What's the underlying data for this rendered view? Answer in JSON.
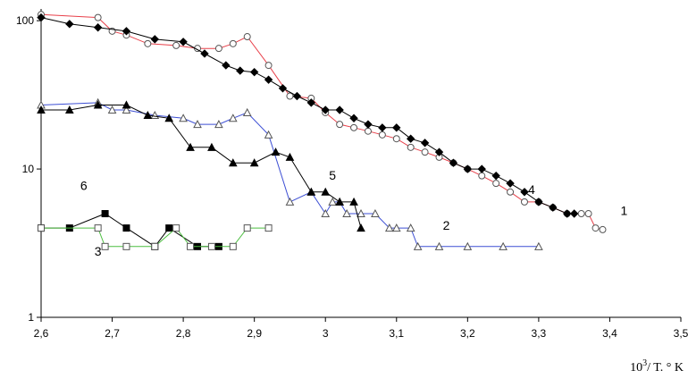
{
  "chart_data": {
    "type": "scatter",
    "title": "",
    "xlabel": {
      "base": "10",
      "exponent": "3",
      "rest": "/ T. ° K"
    },
    "ylabel": "",
    "y_scale": "log",
    "xlim": [
      2.6,
      3.5
    ],
    "ylim": [
      1,
      120
    ],
    "x_ticks": [
      "2,6",
      "2,7",
      "2,8",
      "2,9",
      "3",
      "3,1",
      "3,2",
      "3,3",
      "3,4",
      "3,5"
    ],
    "x_tick_values": [
      2.6,
      2.7,
      2.8,
      2.9,
      3.0,
      3.1,
      3.2,
      3.3,
      3.4,
      3.5
    ],
    "y_ticks": [
      "1",
      "10",
      "100"
    ],
    "y_tick_values": [
      1,
      10,
      100
    ],
    "grid": false,
    "legend": "none",
    "curve_labels": [
      {
        "text": "1",
        "x": 3.42,
        "y": 4.9
      },
      {
        "text": "2",
        "x": 3.17,
        "y": 3.9
      },
      {
        "text": "3",
        "x": 2.68,
        "y": 2.6
      },
      {
        "text": "4",
        "x": 3.29,
        "y": 6.8
      },
      {
        "text": "5",
        "x": 3.01,
        "y": 8.5
      },
      {
        "text": "6",
        "x": 2.66,
        "y": 7.2
      }
    ],
    "series": [
      {
        "label": "1",
        "line_color": "#e8404a",
        "marker": "circle-open",
        "marker_color": "#555555",
        "x": [
          2.6,
          2.68,
          2.7,
          2.72,
          2.75,
          2.79,
          2.82,
          2.85,
          2.87,
          2.89,
          2.92,
          2.95,
          2.98,
          3.0,
          3.02,
          3.04,
          3.06,
          3.08,
          3.1,
          3.12,
          3.14,
          3.16,
          3.18,
          3.2,
          3.22,
          3.24,
          3.26,
          3.28,
          3.3,
          3.32,
          3.34,
          3.36,
          3.37,
          3.38,
          3.39
        ],
        "y": [
          110,
          105,
          85,
          80,
          70,
          68,
          65,
          65,
          70,
          78,
          50,
          31,
          30,
          24,
          20,
          19,
          18,
          17,
          16,
          14,
          13,
          12,
          11,
          10,
          9,
          8,
          7,
          6,
          6,
          5.5,
          5,
          5,
          5,
          4,
          3.9
        ]
      },
      {
        "label": "4",
        "line_color": "#000000",
        "marker": "diamond-filled",
        "marker_color": "#000000",
        "x": [
          2.6,
          2.64,
          2.68,
          2.72,
          2.76,
          2.8,
          2.83,
          2.86,
          2.88,
          2.9,
          2.92,
          2.94,
          2.96,
          2.98,
          3.0,
          3.02,
          3.04,
          3.06,
          3.08,
          3.1,
          3.12,
          3.14,
          3.16,
          3.18,
          3.2,
          3.22,
          3.24,
          3.26,
          3.28,
          3.3,
          3.32,
          3.34,
          3.35
        ],
        "y": [
          105,
          95,
          90,
          85,
          75,
          72,
          60,
          50,
          46,
          45,
          40,
          35,
          31,
          28,
          25,
          25,
          22,
          20,
          19,
          19,
          16,
          15,
          13,
          11,
          10,
          10,
          9,
          8,
          7,
          6,
          5.5,
          5,
          5
        ]
      },
      {
        "label": "2",
        "line_color": "#3d4fd4",
        "marker": "triangle-open",
        "marker_color": "#555555",
        "x": [
          2.6,
          2.68,
          2.7,
          2.72,
          2.76,
          2.8,
          2.82,
          2.85,
          2.87,
          2.89,
          2.92,
          2.95,
          2.98,
          3.0,
          3.01,
          3.02,
          3.03,
          3.05,
          3.07,
          3.09,
          3.1,
          3.12,
          3.13,
          3.16,
          3.2,
          3.25,
          3.3
        ],
        "y": [
          27,
          28,
          25,
          25,
          23,
          22,
          20,
          20,
          22,
          24,
          17,
          6,
          7,
          5,
          6,
          6,
          5,
          5,
          5,
          4,
          4,
          4,
          3,
          3,
          3,
          3,
          3
        ]
      },
      {
        "label": "5",
        "line_color": "#000000",
        "marker": "triangle-filled",
        "marker_color": "#000000",
        "x": [
          2.6,
          2.64,
          2.68,
          2.72,
          2.75,
          2.78,
          2.81,
          2.84,
          2.87,
          2.9,
          2.93,
          2.95,
          2.98,
          3.0,
          3.02,
          3.04,
          3.05
        ],
        "y": [
          25,
          25,
          27,
          27,
          23,
          22,
          14,
          14,
          11,
          11,
          13,
          12,
          7,
          7,
          6,
          6,
          4
        ]
      },
      {
        "label": "6",
        "line_color": "#000000",
        "marker": "square-filled",
        "marker_color": "#000000",
        "x": [
          2.6,
          2.64,
          2.69,
          2.72,
          2.76,
          2.78,
          2.82,
          2.85
        ],
        "y": [
          4,
          4,
          5,
          4,
          3,
          4,
          3,
          3
        ]
      },
      {
        "label": "3",
        "line_color": "#4cbf40",
        "marker": "square-open",
        "marker_color": "#555555",
        "x": [
          2.6,
          2.68,
          2.69,
          2.72,
          2.76,
          2.79,
          2.81,
          2.84,
          2.87,
          2.89,
          2.92
        ],
        "y": [
          4,
          4,
          3,
          3,
          3,
          4,
          3,
          3,
          3,
          4,
          4
        ]
      }
    ]
  }
}
